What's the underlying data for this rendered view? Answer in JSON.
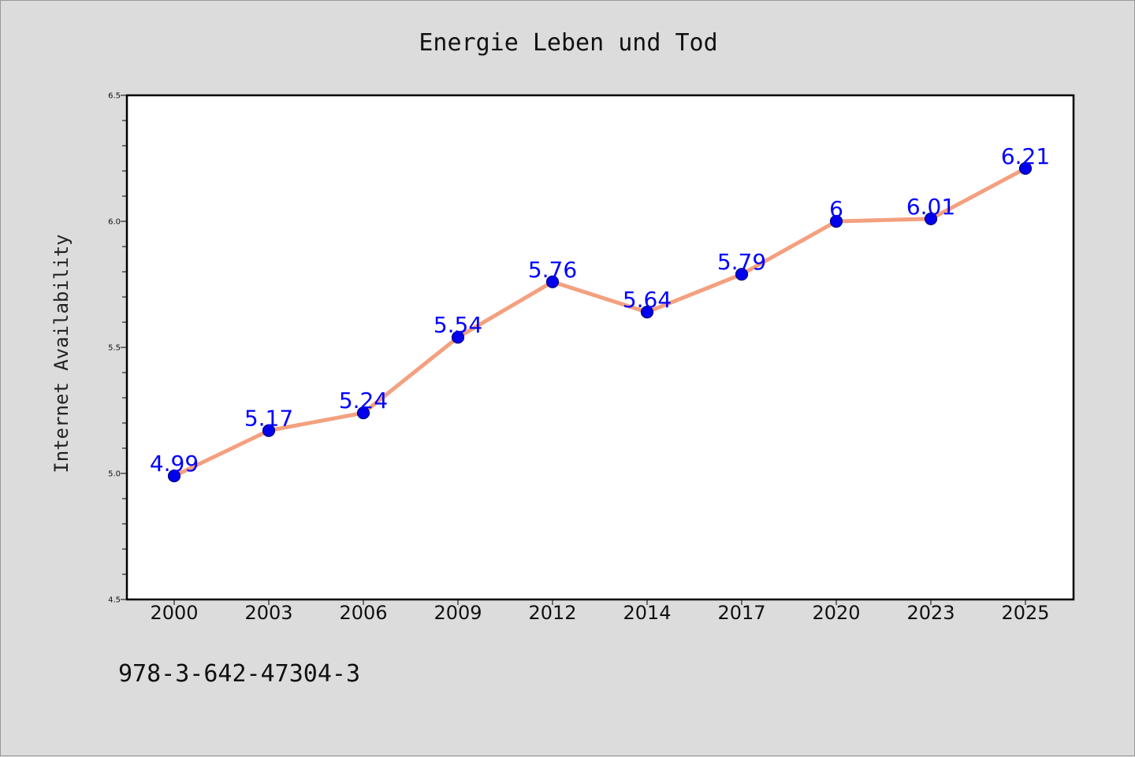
{
  "chart_data": {
    "type": "line",
    "title": "Energie Leben und Tod",
    "xlabel": "",
    "ylabel": "Internet Availability",
    "categories": [
      "2000",
      "2003",
      "2006",
      "2009",
      "2012",
      "2014",
      "2017",
      "2020",
      "2023",
      "2025"
    ],
    "series": [
      {
        "values": [
          4.99,
          5.17,
          5.24,
          5.54,
          5.76,
          5.64,
          5.79,
          6.0,
          6.01,
          6.21
        ],
        "labels": [
          "4.99",
          "5.17",
          "5.24",
          "5.54",
          "5.76",
          "5.64",
          "5.79",
          "6",
          "6.01",
          "6.21"
        ],
        "line_color": "#f4a07f",
        "marker_color": "#0000ee",
        "label_color": "#0000ff"
      }
    ],
    "ylim": [
      4.5,
      6.5
    ],
    "yticks": [
      "4.5",
      "5.0",
      "5.5",
      "6.0",
      "6.5"
    ],
    "grid": false,
    "annotation": "978-3-642-47304-3"
  }
}
